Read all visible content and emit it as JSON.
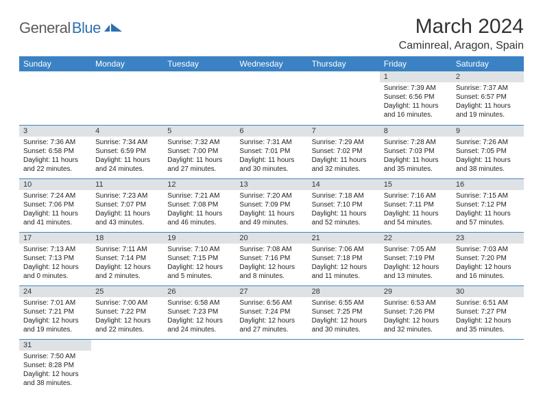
{
  "logo": {
    "general": "General",
    "blue": "Blue"
  },
  "header": {
    "month_title": "March 2024",
    "location": "Caminreal, Aragon, Spain"
  },
  "colors": {
    "header_bg": "#3b82c4",
    "header_text": "#ffffff",
    "daynum_bg": "#dfe2e5",
    "border": "#3b82c4",
    "logo_gray": "#5b5b5b",
    "logo_blue": "#2f6fb0"
  },
  "weekdays": [
    "Sunday",
    "Monday",
    "Tuesday",
    "Wednesday",
    "Thursday",
    "Friday",
    "Saturday"
  ],
  "cells": [
    {
      "empty": true
    },
    {
      "empty": true
    },
    {
      "empty": true
    },
    {
      "empty": true
    },
    {
      "empty": true
    },
    {
      "day": "1",
      "sunrise": "Sunrise: 7:39 AM",
      "sunset": "Sunset: 6:56 PM",
      "daylight1": "Daylight: 11 hours",
      "daylight2": "and 16 minutes."
    },
    {
      "day": "2",
      "sunrise": "Sunrise: 7:37 AM",
      "sunset": "Sunset: 6:57 PM",
      "daylight1": "Daylight: 11 hours",
      "daylight2": "and 19 minutes."
    },
    {
      "day": "3",
      "sunrise": "Sunrise: 7:36 AM",
      "sunset": "Sunset: 6:58 PM",
      "daylight1": "Daylight: 11 hours",
      "daylight2": "and 22 minutes."
    },
    {
      "day": "4",
      "sunrise": "Sunrise: 7:34 AM",
      "sunset": "Sunset: 6:59 PM",
      "daylight1": "Daylight: 11 hours",
      "daylight2": "and 24 minutes."
    },
    {
      "day": "5",
      "sunrise": "Sunrise: 7:32 AM",
      "sunset": "Sunset: 7:00 PM",
      "daylight1": "Daylight: 11 hours",
      "daylight2": "and 27 minutes."
    },
    {
      "day": "6",
      "sunrise": "Sunrise: 7:31 AM",
      "sunset": "Sunset: 7:01 PM",
      "daylight1": "Daylight: 11 hours",
      "daylight2": "and 30 minutes."
    },
    {
      "day": "7",
      "sunrise": "Sunrise: 7:29 AM",
      "sunset": "Sunset: 7:02 PM",
      "daylight1": "Daylight: 11 hours",
      "daylight2": "and 32 minutes."
    },
    {
      "day": "8",
      "sunrise": "Sunrise: 7:28 AM",
      "sunset": "Sunset: 7:03 PM",
      "daylight1": "Daylight: 11 hours",
      "daylight2": "and 35 minutes."
    },
    {
      "day": "9",
      "sunrise": "Sunrise: 7:26 AM",
      "sunset": "Sunset: 7:05 PM",
      "daylight1": "Daylight: 11 hours",
      "daylight2": "and 38 minutes."
    },
    {
      "day": "10",
      "sunrise": "Sunrise: 7:24 AM",
      "sunset": "Sunset: 7:06 PM",
      "daylight1": "Daylight: 11 hours",
      "daylight2": "and 41 minutes."
    },
    {
      "day": "11",
      "sunrise": "Sunrise: 7:23 AM",
      "sunset": "Sunset: 7:07 PM",
      "daylight1": "Daylight: 11 hours",
      "daylight2": "and 43 minutes."
    },
    {
      "day": "12",
      "sunrise": "Sunrise: 7:21 AM",
      "sunset": "Sunset: 7:08 PM",
      "daylight1": "Daylight: 11 hours",
      "daylight2": "and 46 minutes."
    },
    {
      "day": "13",
      "sunrise": "Sunrise: 7:20 AM",
      "sunset": "Sunset: 7:09 PM",
      "daylight1": "Daylight: 11 hours",
      "daylight2": "and 49 minutes."
    },
    {
      "day": "14",
      "sunrise": "Sunrise: 7:18 AM",
      "sunset": "Sunset: 7:10 PM",
      "daylight1": "Daylight: 11 hours",
      "daylight2": "and 52 minutes."
    },
    {
      "day": "15",
      "sunrise": "Sunrise: 7:16 AM",
      "sunset": "Sunset: 7:11 PM",
      "daylight1": "Daylight: 11 hours",
      "daylight2": "and 54 minutes."
    },
    {
      "day": "16",
      "sunrise": "Sunrise: 7:15 AM",
      "sunset": "Sunset: 7:12 PM",
      "daylight1": "Daylight: 11 hours",
      "daylight2": "and 57 minutes."
    },
    {
      "day": "17",
      "sunrise": "Sunrise: 7:13 AM",
      "sunset": "Sunset: 7:13 PM",
      "daylight1": "Daylight: 12 hours",
      "daylight2": "and 0 minutes."
    },
    {
      "day": "18",
      "sunrise": "Sunrise: 7:11 AM",
      "sunset": "Sunset: 7:14 PM",
      "daylight1": "Daylight: 12 hours",
      "daylight2": "and 2 minutes."
    },
    {
      "day": "19",
      "sunrise": "Sunrise: 7:10 AM",
      "sunset": "Sunset: 7:15 PM",
      "daylight1": "Daylight: 12 hours",
      "daylight2": "and 5 minutes."
    },
    {
      "day": "20",
      "sunrise": "Sunrise: 7:08 AM",
      "sunset": "Sunset: 7:16 PM",
      "daylight1": "Daylight: 12 hours",
      "daylight2": "and 8 minutes."
    },
    {
      "day": "21",
      "sunrise": "Sunrise: 7:06 AM",
      "sunset": "Sunset: 7:18 PM",
      "daylight1": "Daylight: 12 hours",
      "daylight2": "and 11 minutes."
    },
    {
      "day": "22",
      "sunrise": "Sunrise: 7:05 AM",
      "sunset": "Sunset: 7:19 PM",
      "daylight1": "Daylight: 12 hours",
      "daylight2": "and 13 minutes."
    },
    {
      "day": "23",
      "sunrise": "Sunrise: 7:03 AM",
      "sunset": "Sunset: 7:20 PM",
      "daylight1": "Daylight: 12 hours",
      "daylight2": "and 16 minutes."
    },
    {
      "day": "24",
      "sunrise": "Sunrise: 7:01 AM",
      "sunset": "Sunset: 7:21 PM",
      "daylight1": "Daylight: 12 hours",
      "daylight2": "and 19 minutes."
    },
    {
      "day": "25",
      "sunrise": "Sunrise: 7:00 AM",
      "sunset": "Sunset: 7:22 PM",
      "daylight1": "Daylight: 12 hours",
      "daylight2": "and 22 minutes."
    },
    {
      "day": "26",
      "sunrise": "Sunrise: 6:58 AM",
      "sunset": "Sunset: 7:23 PM",
      "daylight1": "Daylight: 12 hours",
      "daylight2": "and 24 minutes."
    },
    {
      "day": "27",
      "sunrise": "Sunrise: 6:56 AM",
      "sunset": "Sunset: 7:24 PM",
      "daylight1": "Daylight: 12 hours",
      "daylight2": "and 27 minutes."
    },
    {
      "day": "28",
      "sunrise": "Sunrise: 6:55 AM",
      "sunset": "Sunset: 7:25 PM",
      "daylight1": "Daylight: 12 hours",
      "daylight2": "and 30 minutes."
    },
    {
      "day": "29",
      "sunrise": "Sunrise: 6:53 AM",
      "sunset": "Sunset: 7:26 PM",
      "daylight1": "Daylight: 12 hours",
      "daylight2": "and 32 minutes."
    },
    {
      "day": "30",
      "sunrise": "Sunrise: 6:51 AM",
      "sunset": "Sunset: 7:27 PM",
      "daylight1": "Daylight: 12 hours",
      "daylight2": "and 35 minutes."
    },
    {
      "day": "31",
      "sunrise": "Sunrise: 7:50 AM",
      "sunset": "Sunset: 8:28 PM",
      "daylight1": "Daylight: 12 hours",
      "daylight2": "and 38 minutes."
    },
    {
      "empty": true
    },
    {
      "empty": true
    },
    {
      "empty": true
    },
    {
      "empty": true
    },
    {
      "empty": true
    },
    {
      "empty": true
    }
  ]
}
